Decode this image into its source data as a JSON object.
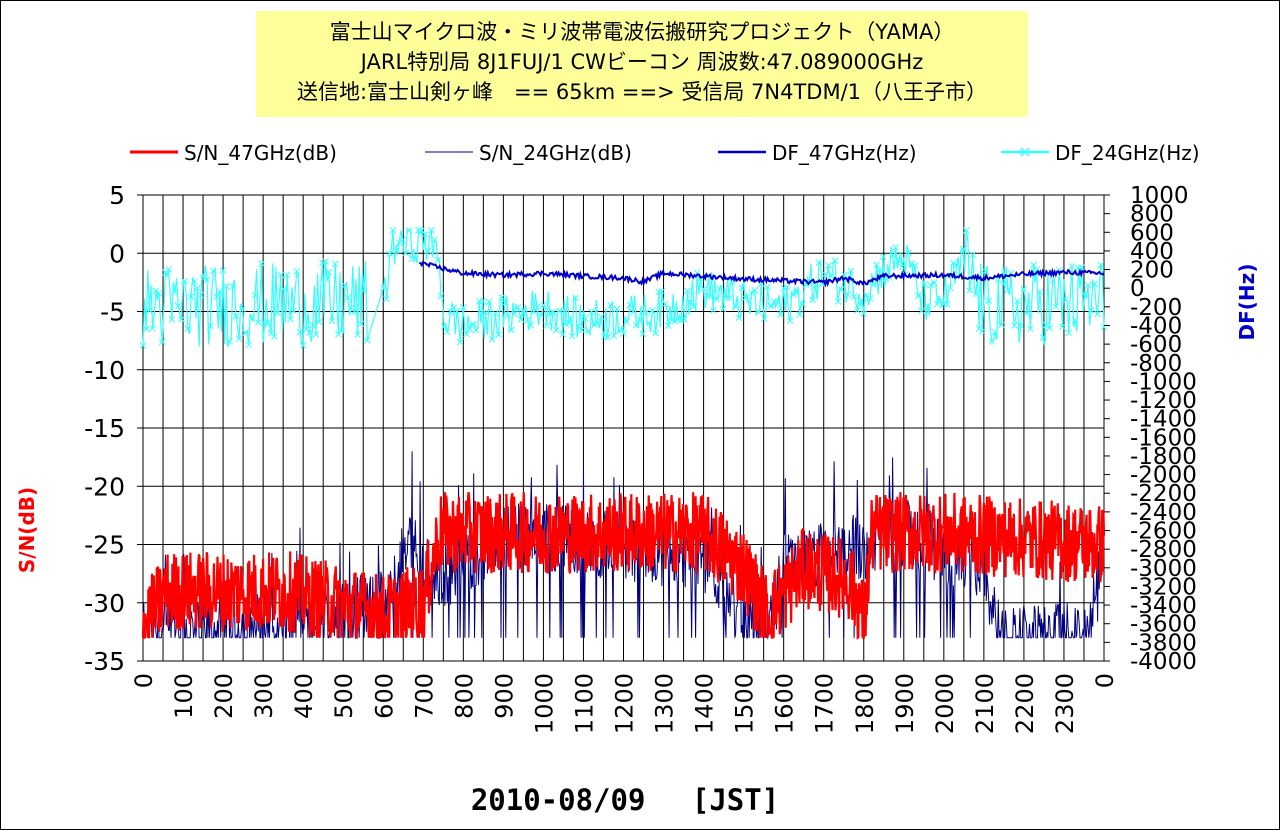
{
  "title_lines": [
    "富士山マイクロ波・ミリ波帯電波伝搬研究プロジェクト（YAMA）",
    "JARL特別局 8J1FUJ/1 CWビーコン 周波数:47.089000GHz",
    "送信地:富士山剣ヶ峰　== 65km ==> 受信局 7N4TDM/1（八王子市）"
  ],
  "chart_data": {
    "type": "line",
    "xlabel": "2010-08/09　 [JST]",
    "ylabel": "S/N(dB)",
    "y2label": "DF(Hz)",
    "x_tick_labels": [
      "0",
      "100",
      "200",
      "300",
      "400",
      "500",
      "600",
      "700",
      "800",
      "900",
      "1000",
      "1100",
      "1200",
      "1300",
      "1400",
      "1500",
      "1600",
      "1700",
      "1800",
      "1900",
      "2000",
      "2100",
      "2200",
      "2300",
      "0"
    ],
    "ylim": [
      -35,
      5
    ],
    "y_ticks": [
      "5",
      "0",
      "-5",
      "-10",
      "-15",
      "-20",
      "-25",
      "-30",
      "-35"
    ],
    "y2lim": [
      -4000,
      1000
    ],
    "y2_ticks": [
      "1000",
      "800",
      "600",
      "400",
      "200",
      "0",
      "-200",
      "-400",
      "-600",
      "-800",
      "-1000",
      "-1200",
      "-1400",
      "-1600",
      "-1800",
      "-2000",
      "-2200",
      "-2400",
      "-2600",
      "-2800",
      "-3000",
      "-3200",
      "-3400",
      "-3600",
      "-3800",
      "-4000"
    ],
    "grid": true,
    "legend_position": "top",
    "series": [
      {
        "name": "S/N_47GHz(dB)",
        "color": "#ff0000",
        "axis": "left",
        "profile": [
          [
            0,
            -32
          ],
          [
            60,
            -29
          ],
          [
            360,
            -29
          ],
          [
            600,
            -31
          ],
          [
            700,
            -30
          ],
          [
            740,
            -24
          ],
          [
            1400,
            -24
          ],
          [
            1500,
            -27
          ],
          [
            1560,
            -31
          ],
          [
            1650,
            -27
          ],
          [
            1760,
            -28
          ],
          [
            1790,
            -30
          ],
          [
            1800,
            -32
          ],
          [
            1820,
            -24
          ],
          [
            2000,
            -24
          ],
          [
            2400,
            -25
          ]
        ]
      },
      {
        "name": "S/N_24GHz(dB)",
        "color": "#000080",
        "axis": "left",
        "profile": [
          [
            0,
            -33
          ],
          [
            300,
            -32
          ],
          [
            620,
            -30
          ],
          [
            660,
            -24
          ],
          [
            720,
            -28
          ],
          [
            780,
            -27
          ],
          [
            900,
            -24
          ],
          [
            1400,
            -26
          ],
          [
            1480,
            -30
          ],
          [
            1560,
            -33
          ],
          [
            1600,
            -27
          ],
          [
            1900,
            -24
          ],
          [
            2100,
            -27
          ],
          [
            2140,
            -33
          ],
          [
            2360,
            -33
          ],
          [
            2400,
            -26
          ]
        ]
      },
      {
        "name": "DF_47GHz(Hz)",
        "color": "#0000cc",
        "axis": "right",
        "profile": [
          [
            690,
            280
          ],
          [
            720,
            240
          ],
          [
            800,
            160
          ],
          [
            900,
            140
          ],
          [
            1000,
            160
          ],
          [
            1100,
            130
          ],
          [
            1200,
            110
          ],
          [
            1250,
            70
          ],
          [
            1300,
            160
          ],
          [
            1400,
            130
          ],
          [
            1500,
            100
          ],
          [
            1700,
            60
          ],
          [
            1750,
            110
          ],
          [
            1800,
            50
          ],
          [
            1850,
            130
          ],
          [
            2000,
            140
          ],
          [
            2100,
            110
          ],
          [
            2200,
            150
          ],
          [
            2300,
            170
          ],
          [
            2400,
            160
          ]
        ]
      },
      {
        "name": "DF_24GHz(Hz)",
        "color": "#33ffff",
        "axis": "right",
        "profile": [
          [
            0,
            -200
          ],
          [
            600,
            -150
          ],
          [
            620,
            450
          ],
          [
            700,
            520
          ],
          [
            740,
            350
          ],
          [
            750,
            -300
          ],
          [
            800,
            -400
          ],
          [
            900,
            -300
          ],
          [
            1000,
            -200
          ],
          [
            1100,
            -350
          ],
          [
            1200,
            -300
          ],
          [
            1300,
            -250
          ],
          [
            1400,
            0
          ],
          [
            1500,
            -150
          ],
          [
            1600,
            -200
          ],
          [
            1700,
            150
          ],
          [
            1800,
            -50
          ],
          [
            1850,
            200
          ],
          [
            1900,
            350
          ],
          [
            1950,
            -150
          ],
          [
            2000,
            -100
          ],
          [
            2050,
            300
          ],
          [
            2100,
            -200
          ],
          [
            2400,
            -150
          ]
        ]
      }
    ]
  }
}
